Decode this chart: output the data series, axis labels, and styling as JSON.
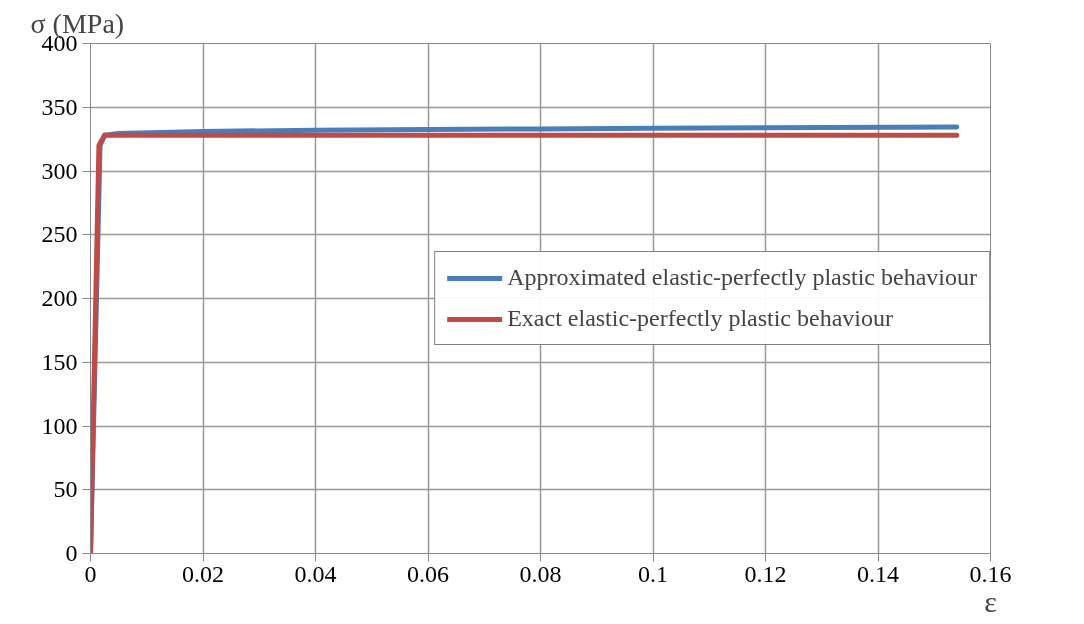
{
  "chart_data": {
    "type": "line",
    "xlabel": "ε",
    "ylabel": "σ (MPa)",
    "xlim": [
      0,
      0.16
    ],
    "xticks": [
      0,
      0.02,
      0.04,
      0.06,
      0.08,
      0.1,
      0.12,
      0.14,
      0.16
    ],
    "ylim": [
      0,
      400
    ],
    "yticks": [
      0,
      50,
      100,
      150,
      200,
      250,
      300,
      350,
      400
    ],
    "grid": true,
    "legend": "right",
    "marker": "none",
    "line_style": "solid",
    "series": [
      {
        "name": "Approximated elastic-perfectly plastic behaviour",
        "color": "#4a7ebb",
        "x": [
          0,
          0.0017,
          0.0025,
          0.005,
          0.02,
          0.04,
          0.06,
          0.08,
          0.1,
          0.12,
          0.154
        ],
        "values": [
          0,
          320,
          328,
          329.5,
          331,
          332,
          332.5,
          333,
          333.5,
          334,
          334.5
        ]
      },
      {
        "name": "Exact elastic-perfectly plastic behaviour",
        "color": "#be4b48",
        "x": [
          0,
          0.0015,
          0.0025,
          0.154
        ],
        "values": [
          0,
          320,
          328,
          328
        ]
      }
    ]
  }
}
